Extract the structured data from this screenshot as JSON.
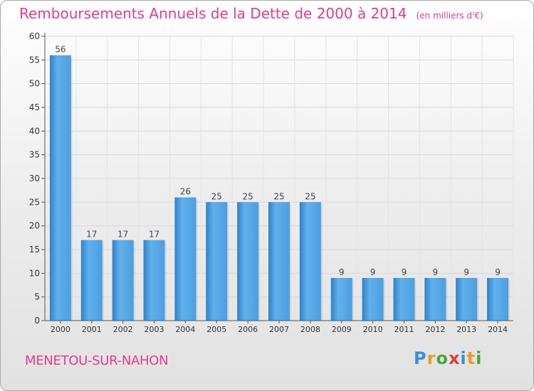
{
  "title": "Remboursements Annuels de la Dette de 2000 à 2014",
  "subtitle": "(en milliers d'€)",
  "commune": "MENETOU-SUR-NAHON",
  "logo": {
    "letters": [
      "P",
      "r",
      "o",
      "x",
      "i",
      "t",
      "i"
    ],
    "colors": [
      "#3a8fd8",
      "#f29a1c",
      "#46a83a",
      "#e23c3c",
      "#3a8fd8",
      "#f29a1c",
      "#46a83a"
    ]
  },
  "colors": {
    "title": "#e63c8a",
    "bar": "#4a9fe0",
    "bar_dark": "#2b7fc4",
    "grid": "#d7d7d7"
  },
  "chart_data": {
    "type": "bar",
    "title": "Remboursements Annuels de la Dette de 2000 à 2014",
    "subtitle": "(en milliers d'€)",
    "categories": [
      "2000",
      "2001",
      "2002",
      "2003",
      "2004",
      "2005",
      "2006",
      "2007",
      "2008",
      "2009",
      "2010",
      "2011",
      "2012",
      "2013",
      "2014"
    ],
    "values": [
      56,
      17,
      17,
      17,
      26,
      25,
      25,
      25,
      25,
      9,
      9,
      9,
      9,
      9,
      9
    ],
    "ylim": [
      0,
      60
    ],
    "yticks": [
      0,
      5,
      10,
      15,
      20,
      25,
      30,
      35,
      40,
      45,
      50,
      55,
      60
    ],
    "grid": true
  }
}
